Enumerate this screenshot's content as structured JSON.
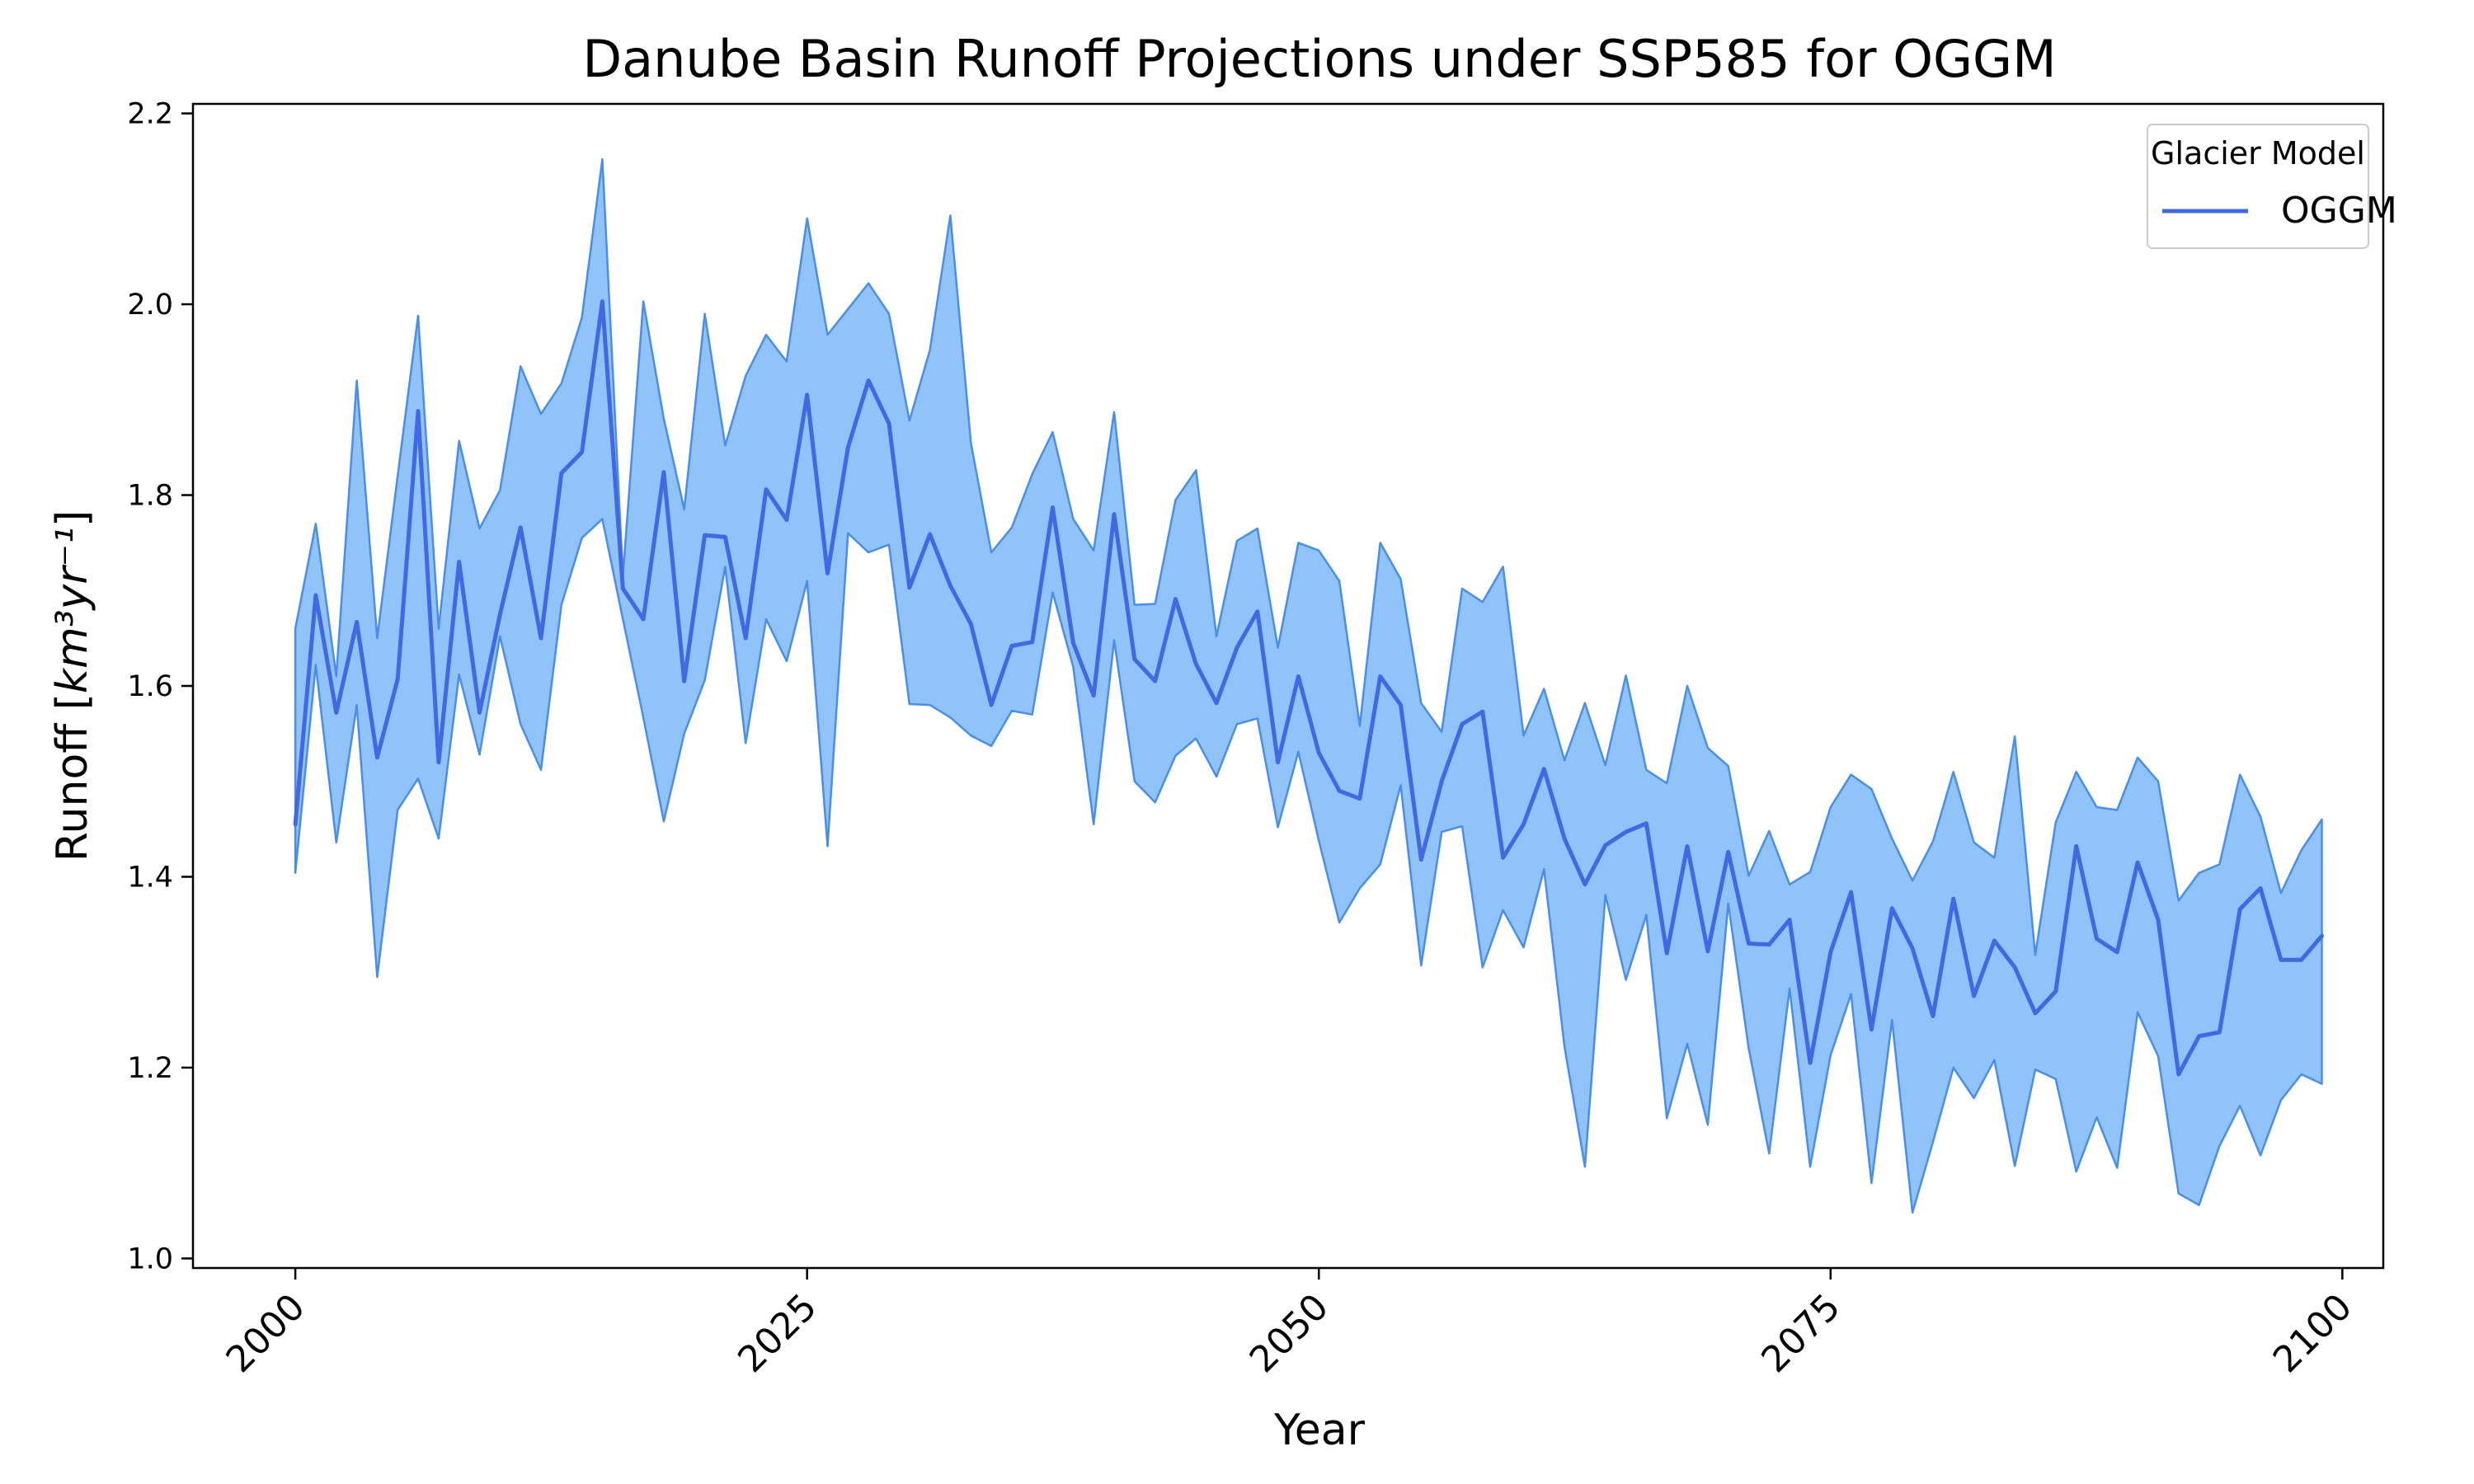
{
  "chart_data": {
    "type": "line",
    "title": "Danube Basin Runoff Projections under SSP585 for OGGM",
    "xlabel": "Year",
    "ylabel_main": "Runoff [",
    "ylabel_unit": "km³yr⁻¹",
    "ylabel_close": "]",
    "xlim": [
      1995,
      2102
    ],
    "ylim": [
      0.99,
      2.21
    ],
    "xticks": [
      2000,
      2025,
      2050,
      2075,
      2100
    ],
    "yticks": [
      1.0,
      1.2,
      1.4,
      1.6,
      1.8,
      2.0,
      2.2
    ],
    "ytick_labels": [
      "1.0",
      "1.2",
      "1.4",
      "1.6",
      "1.8",
      "2.0",
      "2.2"
    ],
    "grid": false,
    "legend": {
      "title": "Glacier Model",
      "placement": "top-right"
    },
    "colors": {
      "line": "#4169e1",
      "band_fill": "#8fc3f9",
      "band_edge": "#4a8ee8"
    },
    "x_start": 2000,
    "series": [
      {
        "name": "OGGM",
        "mean": [
          1.455,
          1.695,
          1.572,
          1.667,
          1.525,
          1.607,
          1.888,
          1.52,
          1.73,
          1.572,
          1.675,
          1.766,
          1.65,
          1.823,
          1.845,
          2.003,
          1.702,
          1.67,
          1.824,
          1.605,
          1.758,
          1.756,
          1.65,
          1.806,
          1.774,
          1.905,
          1.718,
          1.85,
          1.92,
          1.875,
          1.703,
          1.759,
          1.705,
          1.665,
          1.58,
          1.642,
          1.646,
          1.787,
          1.645,
          1.59,
          1.78,
          1.628,
          1.605,
          1.691,
          1.623,
          1.582,
          1.64,
          1.678,
          1.52,
          1.61,
          1.53,
          1.49,
          1.482,
          1.61,
          1.58,
          1.418,
          1.5,
          1.56,
          1.573,
          1.42,
          1.455,
          1.513,
          1.44,
          1.392,
          1.433,
          1.447,
          1.456,
          1.32,
          1.432,
          1.322,
          1.426,
          1.33,
          1.329,
          1.355,
          1.205,
          1.321,
          1.384,
          1.24,
          1.367,
          1.325,
          1.254,
          1.377,
          1.275,
          1.333,
          1.305,
          1.257,
          1.28,
          1.432,
          1.335,
          1.321,
          1.415,
          1.355,
          1.193,
          1.233,
          1.237,
          1.366,
          1.388,
          1.313,
          1.313,
          1.338
        ],
        "upper": [
          1.66,
          1.77,
          1.61,
          1.92,
          1.65,
          1.82,
          1.988,
          1.66,
          1.857,
          1.765,
          1.805,
          1.935,
          1.885,
          1.917,
          1.986,
          2.152,
          1.715,
          2.003,
          1.88,
          1.785,
          1.99,
          1.852,
          1.925,
          1.968,
          1.94,
          2.09,
          1.968,
          1.995,
          2.022,
          1.99,
          1.878,
          1.952,
          2.093,
          1.855,
          1.74,
          1.766,
          1.822,
          1.866,
          1.775,
          1.742,
          1.887,
          1.685,
          1.686,
          1.795,
          1.826,
          1.652,
          1.752,
          1.765,
          1.64,
          1.75,
          1.742,
          1.71,
          1.558,
          1.75,
          1.712,
          1.582,
          1.552,
          1.702,
          1.688,
          1.725,
          1.548,
          1.597,
          1.522,
          1.582,
          1.517,
          1.611,
          1.512,
          1.498,
          1.6,
          1.535,
          1.516,
          1.401,
          1.448,
          1.392,
          1.405,
          1.473,
          1.507,
          1.492,
          1.44,
          1.396,
          1.437,
          1.51,
          1.436,
          1.42,
          1.547,
          1.318,
          1.457,
          1.51,
          1.473,
          1.47,
          1.525,
          1.5,
          1.375,
          1.404,
          1.413,
          1.507,
          1.463,
          1.383,
          1.428,
          1.46
        ],
        "lower": [
          1.404,
          1.622,
          1.436,
          1.58,
          1.295,
          1.47,
          1.503,
          1.44,
          1.612,
          1.528,
          1.652,
          1.56,
          1.512,
          1.685,
          1.755,
          1.775,
          1.67,
          1.567,
          1.458,
          1.55,
          1.606,
          1.725,
          1.54,
          1.67,
          1.626,
          1.71,
          1.432,
          1.76,
          1.74,
          1.748,
          1.581,
          1.58,
          1.567,
          1.548,
          1.537,
          1.574,
          1.57,
          1.698,
          1.62,
          1.455,
          1.648,
          1.5,
          1.478,
          1.527,
          1.545,
          1.505,
          1.56,
          1.566,
          1.452,
          1.531,
          1.438,
          1.352,
          1.388,
          1.413,
          1.496,
          1.307,
          1.447,
          1.453,
          1.305,
          1.365,
          1.326,
          1.408,
          1.222,
          1.096,
          1.381,
          1.292,
          1.36,
          1.147,
          1.225,
          1.14,
          1.372,
          1.22,
          1.11,
          1.283,
          1.096,
          1.213,
          1.277,
          1.079,
          1.25,
          1.048,
          1.122,
          1.2,
          1.168,
          1.208,
          1.097,
          1.198,
          1.188,
          1.091,
          1.148,
          1.095,
          1.258,
          1.212,
          1.068,
          1.056,
          1.118,
          1.16,
          1.108,
          1.166,
          1.193,
          1.183
        ]
      }
    ]
  }
}
